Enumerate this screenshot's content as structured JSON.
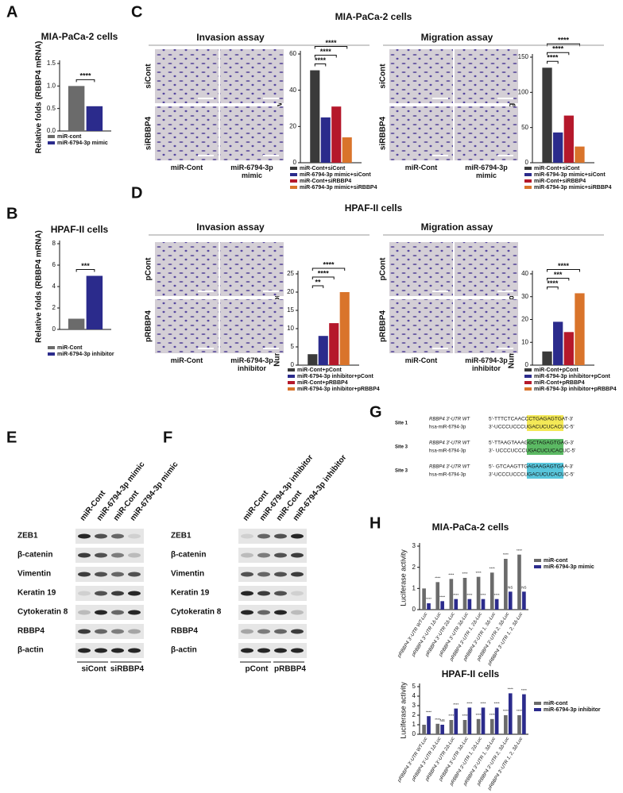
{
  "panel_labels": [
    "A",
    "B",
    "C",
    "D",
    "E",
    "F",
    "G",
    "H"
  ],
  "chart_data": [
    {
      "type": "bar",
      "title": "MIA-PaCa-2 cells",
      "ylabel": "Relative folds (RBBP4 mRNA)",
      "categories": [
        null
      ],
      "series": [
        {
          "name": "miR-cont",
          "color": "#6b6b6b",
          "values": [
            1.0
          ]
        },
        {
          "name": "miR-6794-3p mimic",
          "color": "#2b2b8c",
          "values": [
            0.55
          ]
        }
      ],
      "ylim": [
        0,
        1.5
      ],
      "yticks": [
        {
          "value": 0,
          "label": "0.0"
        },
        {
          "value": 0.5,
          "label": "0.5"
        },
        {
          "value": 1,
          "label": "1.0"
        },
        {
          "value": 1.5,
          "label": "1.5"
        }
      ],
      "significance": [
        "****"
      ]
    },
    {
      "type": "bar",
      "title": "HPAF-II cells",
      "ylabel": "Relative folds (RBBP4 mRNA)",
      "categories": [
        null
      ],
      "series": [
        {
          "name": "miR-Cont",
          "color": "#6b6b6b",
          "values": [
            1.0
          ]
        },
        {
          "name": "miR-6794-3p inhibitor",
          "color": "#2b2b8c",
          "values": [
            5.0
          ]
        }
      ],
      "ylim": [
        0,
        8
      ],
      "yticks": [
        0,
        2,
        4,
        6,
        8
      ],
      "significance": [
        "***"
      ]
    },
    {
      "type": "bar",
      "ylabel": "Number of invasion cells",
      "categories": [
        null
      ],
      "series": [
        {
          "name": "miR-Cont+siCont",
          "color": "#3a3a3a",
          "values": [
            51
          ]
        },
        {
          "name": "miR-6794-3p mimic+siCont",
          "color": "#2b2b8c",
          "values": [
            25
          ]
        },
        {
          "name": "miR-Cont+siRBBP4",
          "color": "#b5182b",
          "values": [
            31
          ]
        },
        {
          "name": "miR-6794-3p mimic+siRBBP4",
          "color": "#d9742b",
          "values": [
            14
          ]
        }
      ],
      "ylim": [
        0,
        60
      ],
      "yticks": [
        0,
        20,
        40,
        60
      ],
      "significance": [
        "****",
        "****",
        "****"
      ]
    },
    {
      "type": "bar",
      "ylabel": "Number of migration cells",
      "categories": [
        null
      ],
      "series": [
        {
          "name": "miR-Cont+siCont",
          "color": "#3a3a3a",
          "values": [
            135
          ]
        },
        {
          "name": "miR-6794-3p mimic+siCont",
          "color": "#2b2b8c",
          "values": [
            43
          ]
        },
        {
          "name": "miR-Cont+siRBBP4",
          "color": "#b5182b",
          "values": [
            67
          ]
        },
        {
          "name": "miR-6794-3p mimic+siRBBP4",
          "color": "#d9742b",
          "values": [
            23
          ]
        }
      ],
      "ylim": [
        0,
        150
      ],
      "yticks": [
        0,
        50,
        100,
        150
      ],
      "significance": [
        "****",
        "****",
        "****"
      ]
    },
    {
      "type": "bar",
      "ylabel": "Number of invasion cells",
      "categories": [
        null
      ],
      "series": [
        {
          "name": "miR-Cont+pCont",
          "color": "#3a3a3a",
          "values": [
            3
          ]
        },
        {
          "name": "miR-6794-3p inhibitor+pCont",
          "color": "#2b2b8c",
          "values": [
            8
          ]
        },
        {
          "name": "miR-Cont+pRBBP4",
          "color": "#b5182b",
          "values": [
            11.5
          ]
        },
        {
          "name": "miR-6794-3p inhibitor+pRBBP4",
          "color": "#d9742b",
          "values": [
            20
          ]
        }
      ],
      "ylim": [
        0,
        25
      ],
      "yticks": [
        0,
        5,
        10,
        15,
        20,
        25
      ],
      "significance": [
        "**",
        "****",
        "****"
      ]
    },
    {
      "type": "bar",
      "ylabel": "Number of migration cells",
      "categories": [
        null
      ],
      "series": [
        {
          "name": "miR-Cont+pCont",
          "color": "#3a3a3a",
          "values": [
            6
          ]
        },
        {
          "name": "miR-6794-3p inhibitor+pCont",
          "color": "#2b2b8c",
          "values": [
            19
          ]
        },
        {
          "name": "miR-Cont+pRBBP4",
          "color": "#b5182b",
          "values": [
            14.5
          ]
        },
        {
          "name": "miR-6794-3p inhibitor+pRBBP4",
          "color": "#d9742b",
          "values": [
            31.5
          ]
        }
      ],
      "ylim": [
        0,
        40
      ],
      "yticks": [
        0,
        10,
        20,
        30,
        40
      ],
      "significance": [
        "****",
        "***",
        "****"
      ]
    },
    {
      "type": "bar",
      "title": "MIA-PaCa-2 cells",
      "ylabel": "Luciferase activity",
      "categories": [
        "pRBBP4 3'-UTR WT-Luc",
        "pRBBP4 3'-UTR 1Δ-Luc",
        "pRBBP4 3'-UTR 2Δ-Luc",
        "pRBBP4 3'-UTR 3Δ-Luc",
        "pRBBP4 3'-UTR 1, 2Δ-Luc",
        "pRBBP4 3'-UTR 1, 3Δ-Luc",
        "pRBBP4 3'-UTR 2, 3Δ-Luc",
        "pRBBP4 3'-UTR 1, 2, 3Δ-Luc"
      ],
      "series": [
        {
          "name": "miR-cont",
          "color": "#6b6b6b",
          "values": [
            1.0,
            1.3,
            1.45,
            1.5,
            1.55,
            1.75,
            2.4,
            2.6
          ],
          "labels": [
            null,
            "****",
            "****",
            "****",
            "****",
            "****",
            "****",
            "****"
          ]
        },
        {
          "name": "miR-6794-3p mimic",
          "color": "#2b2b8c",
          "values": [
            0.3,
            0.4,
            0.5,
            0.5,
            0.5,
            0.5,
            0.85,
            0.85
          ],
          "labels": [
            "****",
            "****",
            "****",
            "****",
            "****",
            "****",
            "NS",
            "NS"
          ]
        }
      ],
      "ylim": [
        0,
        3
      ],
      "yticks": [
        0,
        1,
        2,
        3
      ]
    },
    {
      "type": "bar",
      "title": "HPAF-II cells",
      "ylabel": "Luciferase activity",
      "categories": [
        "pRBBP4 3'-UTR WT-Luc",
        "pRBBP4 3'-UTR 1Δ-Luc",
        "pRBBP4 3'-UTR 2Δ-Luc",
        "pRBBP4 3'-UTR 3Δ-Luc",
        "pRBBP4 3'-UTR 1, 2Δ-Luc",
        "pRBBP4 3'-UTR 1, 3Δ-Luc",
        "pRBBP4 3'-UTR 2, 3Δ-Luc",
        "pRBBP4 3'-UTR 1, 2, 3Δ-Luc"
      ],
      "series": [
        {
          "name": "miR-cont",
          "color": "#6b6b6b",
          "values": [
            1.0,
            1.1,
            1.5,
            1.5,
            1.6,
            1.6,
            2.0,
            2.0
          ],
          "labels": [
            null,
            "****",
            "****",
            "****",
            "****",
            "****",
            "****",
            "****"
          ]
        },
        {
          "name": "miR-6794-3p inhibitor",
          "color": "#2b2b8c",
          "values": [
            1.9,
            1.0,
            2.7,
            2.8,
            2.8,
            2.8,
            4.3,
            4.2
          ],
          "labels": [
            "****",
            "NS",
            "****",
            "****",
            "****",
            "****",
            "****",
            "****"
          ]
        }
      ],
      "ylim": [
        0,
        5
      ],
      "yticks": [
        0,
        1,
        2,
        3,
        4,
        5
      ]
    }
  ],
  "panel_c": {
    "title": "MIA-PaCa-2 cells",
    "sections": [
      "Invasion assay",
      "Migration assay"
    ],
    "rows": [
      "siCont",
      "siRBBP4"
    ],
    "columns": [
      "miR-Cont",
      "miR-6794-3p mimic"
    ]
  },
  "panel_d": {
    "title": "HPAF-II cells",
    "sections": [
      "Invasion assay",
      "Migration assay"
    ],
    "rows": [
      "pCont",
      "pRBBP4"
    ],
    "columns": [
      "miR-Cont",
      "miR-6794-3p inhibitor"
    ]
  },
  "panel_e": {
    "samples": [
      "miR-Cont",
      "miR-6794-3p mimic",
      "miR-Cont",
      "miR-6794-3p mimic"
    ],
    "proteins": [
      "ZEB1",
      "β-catenin",
      "Vimentin",
      "Keratin 19",
      "Cytokeratin 8",
      "RBBP4",
      "β-actin"
    ],
    "groups": [
      "siCont",
      "siRBBP4"
    ]
  },
  "panel_f": {
    "samples": [
      "miR-Cont",
      "miR-6794-3p inhibitor",
      "miR-Cont",
      "miR-6794-3p inhibitor"
    ],
    "proteins": [
      "ZEB1",
      "β-catenin",
      "Vimentin",
      "Keratin 19",
      "Cytokeratin 8",
      "RBBP4",
      "β-actin"
    ],
    "groups": [
      "pCont",
      "pRBBP4"
    ]
  },
  "panel_g": {
    "sites": [
      {
        "site": "Site 1",
        "utr_label": "RBBP4 3'-UTR WT",
        "utr_seq": "5'-TTTCTCAACCCTGAGAGTGAT-3'",
        "mir_label": "hsa-miR-6794-3p",
        "mir_seq": "3'-UCCCUCCCUGACUCUCACUC-5'"
      },
      {
        "site": "Site 3",
        "utr_label": "RBBP4 3'-UTR WT",
        "utr_seq": "5'-TTAAGTAAAGGCTAGAGTGAG-3'",
        "mir_label": "hsa-miR-6794-3p",
        "mir_seq": "3'- UCCCUCCCUGACUCUCACUC-5'"
      },
      {
        "site": "Site 3",
        "utr_label": "RBBP4 3'-UTR WT",
        "utr_seq": "5'- GTCAAGTTGAGAAGAGTGAA-3'",
        "mir_label": "hsa-miR-6794-3p",
        "mir_seq": "3'-UCCCUCCCUGACUCUCACUC-5'"
      }
    ]
  }
}
